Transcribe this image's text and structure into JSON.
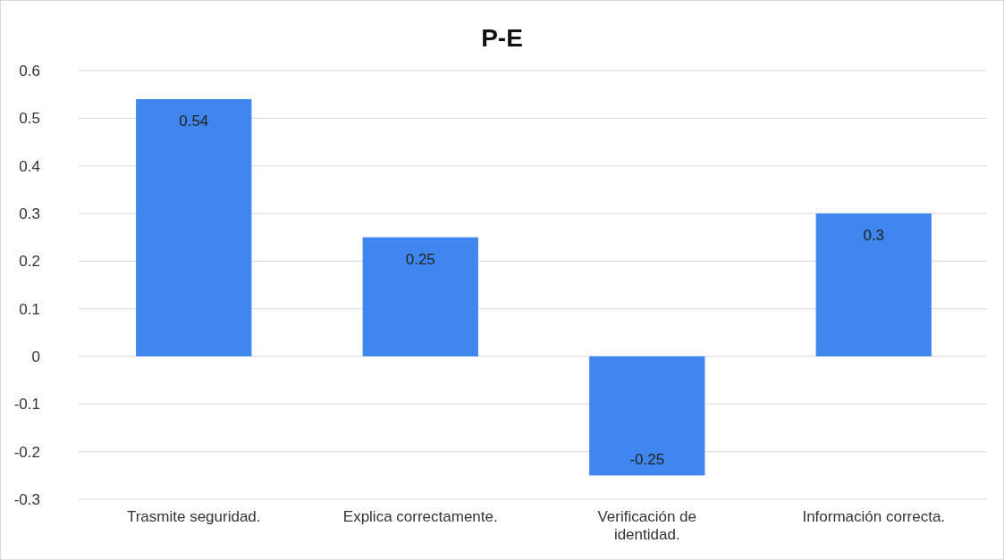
{
  "chart_data": {
    "type": "bar",
    "title": "P-E",
    "categories": [
      "Trasmite seguridad.",
      "Explica correctamente.",
      "Verificación de identidad.",
      "Información correcta."
    ],
    "values": [
      0.54,
      0.25,
      -0.25,
      0.3
    ],
    "color": "#3f86ef",
    "ylim": [
      -0.3,
      0.6
    ],
    "yticks": [
      -0.3,
      -0.2,
      -0.1,
      0,
      0.1,
      0.2,
      0.3,
      0.4,
      0.5,
      0.6
    ],
    "grid": "y",
    "data_labels": true
  }
}
